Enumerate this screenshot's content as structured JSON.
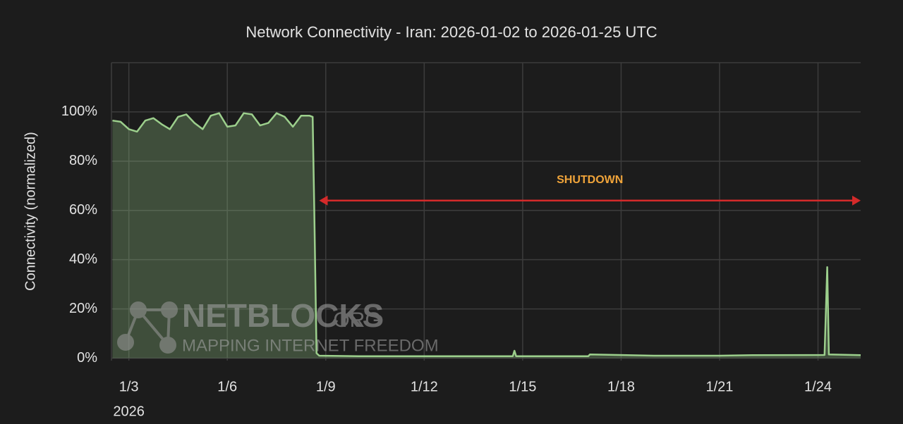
{
  "chart_data": {
    "type": "area",
    "title": "Network Connectivity - Iran: 2026-01-02 to 2026-01-25 UTC",
    "y_label": "Connectivity (normalized)",
    "x_year": "2026",
    "x": [
      2.5,
      2.75,
      3.0,
      3.25,
      3.5,
      3.75,
      4.0,
      4.25,
      4.5,
      4.75,
      5.0,
      5.25,
      5.5,
      5.75,
      6.0,
      6.25,
      6.5,
      6.75,
      7.0,
      7.25,
      7.5,
      7.75,
      8.0,
      8.25,
      8.5,
      8.6,
      8.65,
      8.72,
      8.8,
      10,
      12,
      14.7,
      14.75,
      14.8,
      17,
      17.05,
      19,
      21,
      22,
      24.2,
      24.28,
      24.33,
      25.3
    ],
    "series": [
      {
        "name": "Connectivity",
        "color": "#9ccf8c",
        "values": [
          96.5,
          96,
          93,
          92,
          96.5,
          97.5,
          95,
          93,
          98,
          99,
          95.5,
          93,
          98.5,
          99.5,
          94,
          94.5,
          99.5,
          99,
          94.5,
          95.5,
          99.5,
          98,
          94,
          98.5,
          98.5,
          98,
          60,
          2,
          1,
          0.8,
          0.8,
          0.8,
          3,
          0.8,
          0.8,
          1.5,
          1,
          1,
          1.2,
          1.3,
          37,
          1.5,
          1.2
        ]
      }
    ],
    "xlim": [
      2.47,
      25.3
    ],
    "xticks": [
      {
        "value": 3,
        "label": "1/3"
      },
      {
        "value": 6,
        "label": "1/6"
      },
      {
        "value": 9,
        "label": "1/9"
      },
      {
        "value": 12,
        "label": "1/12"
      },
      {
        "value": 15,
        "label": "1/15"
      },
      {
        "value": 18,
        "label": "1/18"
      },
      {
        "value": 21,
        "label": "1/21"
      },
      {
        "value": 24,
        "label": "1/24"
      }
    ],
    "ylim": [
      -1,
      120
    ],
    "yticks": [
      {
        "value": 0,
        "label": "0%"
      },
      {
        "value": 20,
        "label": "20%"
      },
      {
        "value": 40,
        "label": "40%"
      },
      {
        "value": 60,
        "label": "60%"
      },
      {
        "value": 80,
        "label": "80%"
      },
      {
        "value": 100,
        "label": "100%"
      }
    ],
    "grid": true,
    "annotation": {
      "text": "SHUTDOWN",
      "x_start": 8.8,
      "x_end": 25.3,
      "y": 64,
      "color": "#d42a2a",
      "text_color": "#f0a43a"
    },
    "watermark": {
      "brand": "NETBLOCKS",
      "suffix": ".ORG",
      "tagline": "MAPPING INTERNET FREEDOM"
    }
  }
}
